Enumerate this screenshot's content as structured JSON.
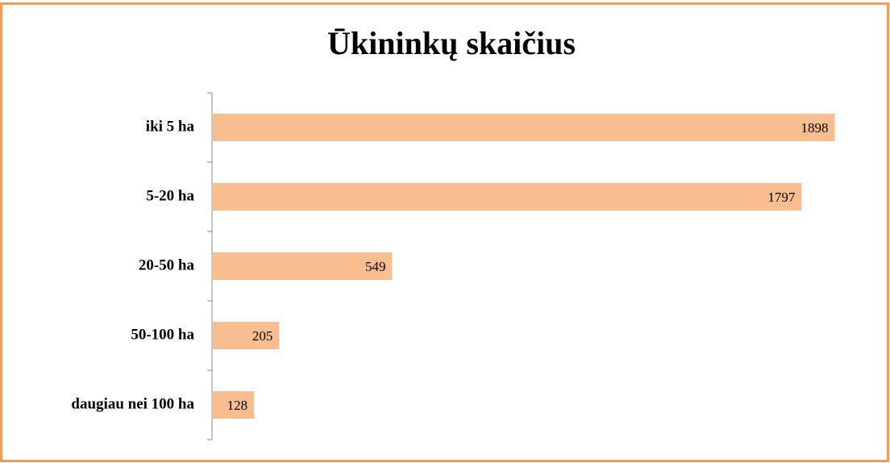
{
  "chart_data": {
    "type": "hbar",
    "title": "Ūkininkų skaičius",
    "categories": [
      "iki 5 ha",
      "5-20 ha",
      "20-50 ha",
      "50-100 ha",
      "daugiau nei 100 ha"
    ],
    "values": [
      1898,
      1797,
      549,
      205,
      128
    ],
    "color": "#f9be8f",
    "xlim": [
      0,
      2000
    ]
  }
}
